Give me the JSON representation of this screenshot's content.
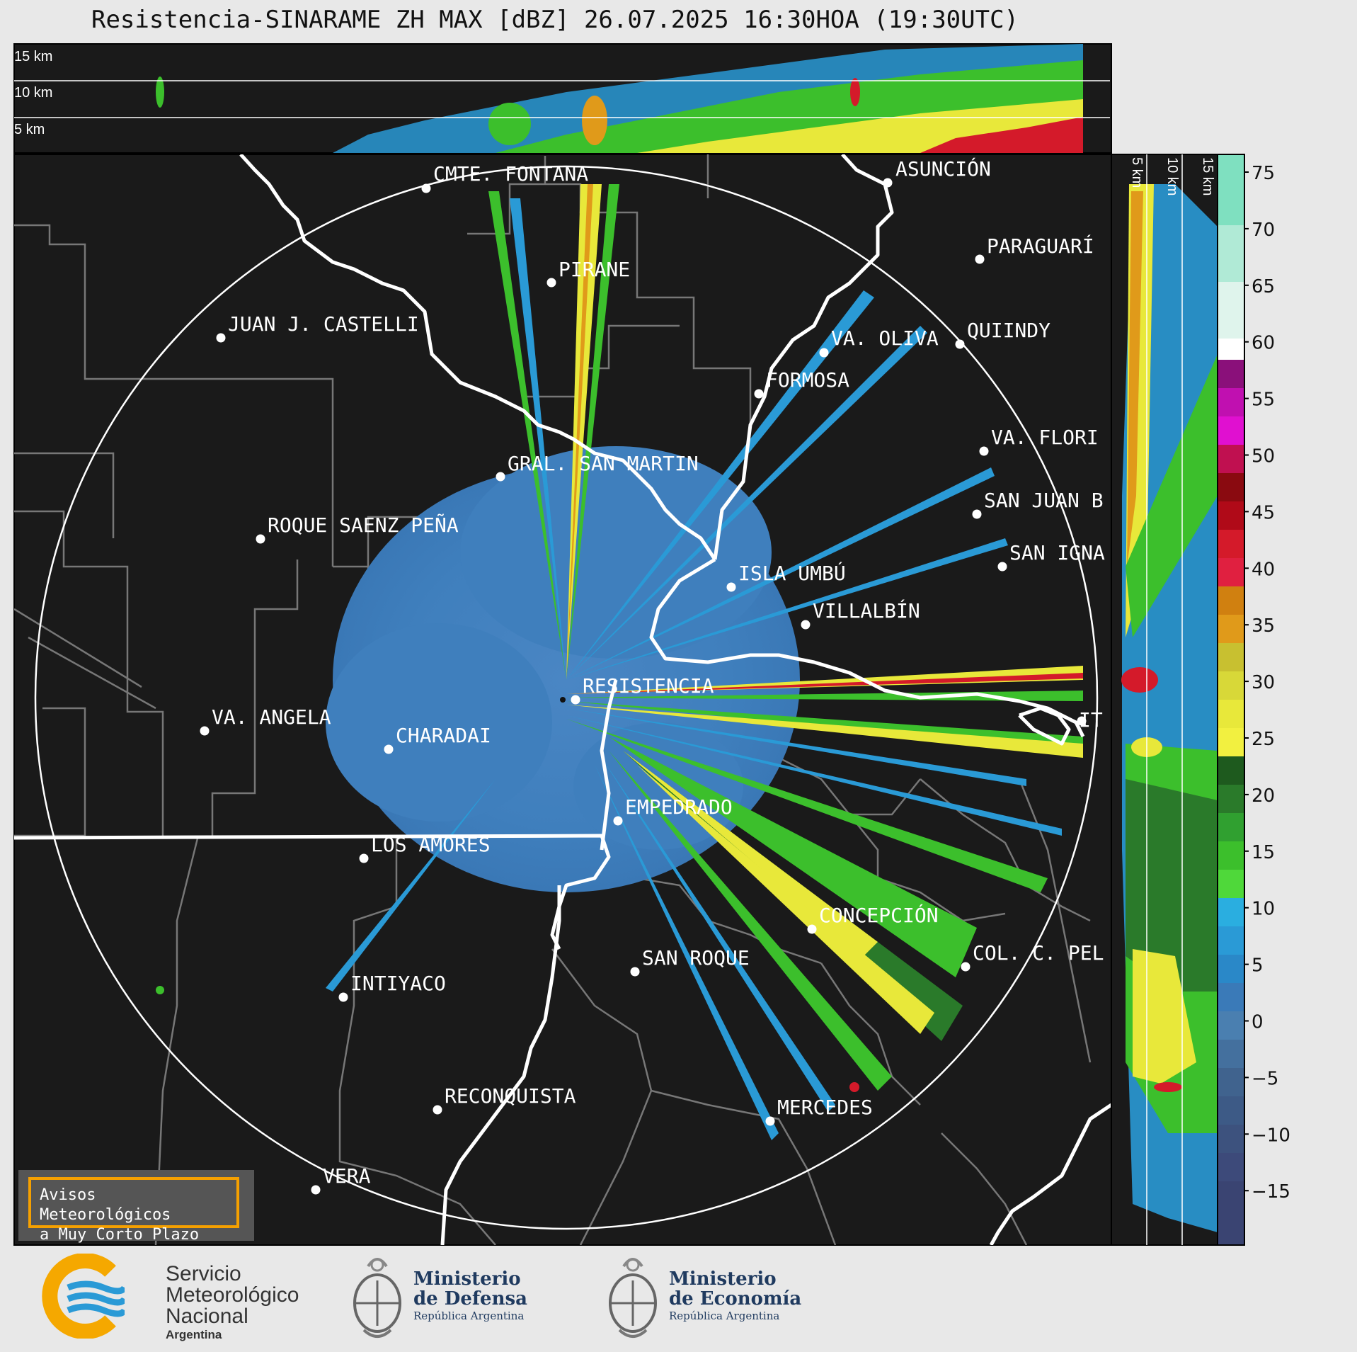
{
  "title": "Resistencia-SINARAME ZH MAX [dBZ] 26.07.2025 16:30HOA (19:30UTC)",
  "top_panel": {
    "labels": [
      "15 km",
      "10 km",
      "5 km"
    ]
  },
  "right_panel": {
    "labels": [
      "5 km",
      "10 km",
      "15 km"
    ]
  },
  "colorbar": {
    "ticks": [
      "75",
      "70",
      "65",
      "60",
      "55",
      "50",
      "45",
      "40",
      "35",
      "30",
      "25",
      "20",
      "15",
      "10",
      "5",
      "0",
      "−5",
      "−10",
      "−15"
    ],
    "colors": {
      "band_neg": "#3d4a7a",
      "band_low": "#4a7fb0",
      "band_blue": "#2a9ad6",
      "band_green": "#3cbf2c",
      "band_dgreen": "#2a7a2a",
      "band_yellow": "#e8e83a",
      "band_orange": "#e09a1a",
      "band_red": "#d41a2a",
      "band_dred": "#8a0a10",
      "band_magenta": "#e010d0",
      "band_purple": "#8a107a",
      "band_white": "#ffffff",
      "band_teal": "#7fe0c0"
    }
  },
  "cities": [
    {
      "name": "CMTE. FONTANA"
    },
    {
      "name": "ASUNCIÓN"
    },
    {
      "name": "PARAGUARÍ"
    },
    {
      "name": "PIRANE"
    },
    {
      "name": "JUAN J. CASTELLI"
    },
    {
      "name": "VA. OLIVA"
    },
    {
      "name": "QUIINDY"
    },
    {
      "name": "FORMOSA"
    },
    {
      "name": "VA. FLORI"
    },
    {
      "name": "GRAL. SAN MARTIN"
    },
    {
      "name": "SAN JUAN B"
    },
    {
      "name": "ROQUE SAENZ PEÑA"
    },
    {
      "name": "SAN IGNA"
    },
    {
      "name": "ISLA UMBÚ"
    },
    {
      "name": "VILLALBÍN"
    },
    {
      "name": "RESISTENCIA"
    },
    {
      "name": "VA. ANGELA"
    },
    {
      "name": "CHARADAI"
    },
    {
      "name": "IT"
    },
    {
      "name": "EMPEDRADO"
    },
    {
      "name": "LOS AMORES"
    },
    {
      "name": "CONCEPCIÓN"
    },
    {
      "name": "COL. C. PEL"
    },
    {
      "name": "SAN ROQUE"
    },
    {
      "name": "INTIYACO"
    },
    {
      "name": "RECONQUISTA"
    },
    {
      "name": "MERCEDES"
    },
    {
      "name": "VERA"
    }
  ],
  "alert_box": {
    "line1": "Avisos Meteorológicos",
    "line2": "a Muy Corto Plazo"
  },
  "logos": {
    "smn": {
      "line1": "Servicio",
      "line2": "Meteorológico",
      "line3": "Nacional",
      "line4": "Argentina"
    },
    "defensa": {
      "line1": "Ministerio",
      "line2": "de Defensa",
      "line3": "República Argentina"
    },
    "economia": {
      "line1": "Ministerio",
      "line2": "de Economía",
      "line3": "República Argentina"
    }
  }
}
